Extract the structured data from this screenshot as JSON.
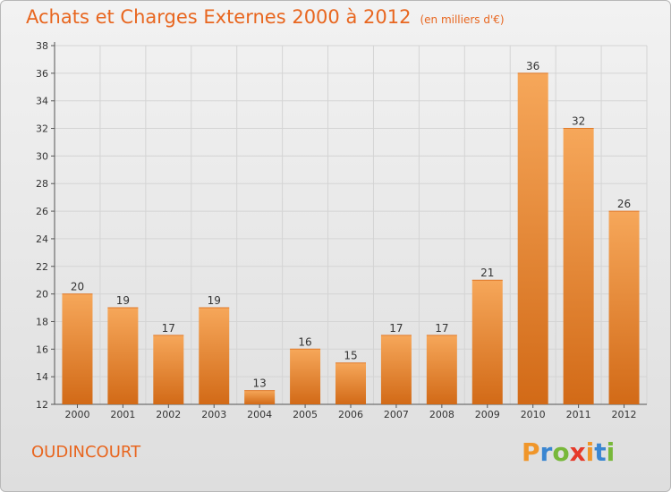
{
  "header": {
    "title": "Achats et Charges Externes 2000 à 2012",
    "unit": "(en milliers d'€)"
  },
  "footer": {
    "commune": "OUDINCOURT",
    "logo_letters": [
      "P",
      "r",
      "o",
      "x",
      "i",
      "t",
      "i"
    ],
    "logo_colors": [
      "#f0962a",
      "#3a86d1",
      "#78b83a",
      "#e63a2a",
      "#f0962a",
      "#3a86d1",
      "#78b83a"
    ]
  },
  "colors": {
    "bar_top": "#f6a75a",
    "bar_bottom": "#d26a17",
    "title": "#e8661f"
  },
  "chart_data": {
    "type": "bar",
    "categories": [
      "2000",
      "2001",
      "2002",
      "2003",
      "2004",
      "2005",
      "2006",
      "2007",
      "2008",
      "2009",
      "2010",
      "2011",
      "2012"
    ],
    "values": [
      20,
      19,
      17,
      19,
      13,
      16,
      15,
      17,
      17,
      21,
      36,
      32,
      26
    ],
    "ylim": [
      12,
      38
    ],
    "yticks": [
      12,
      14,
      16,
      18,
      20,
      22,
      24,
      26,
      28,
      30,
      32,
      34,
      36,
      38
    ],
    "grid": true
  }
}
